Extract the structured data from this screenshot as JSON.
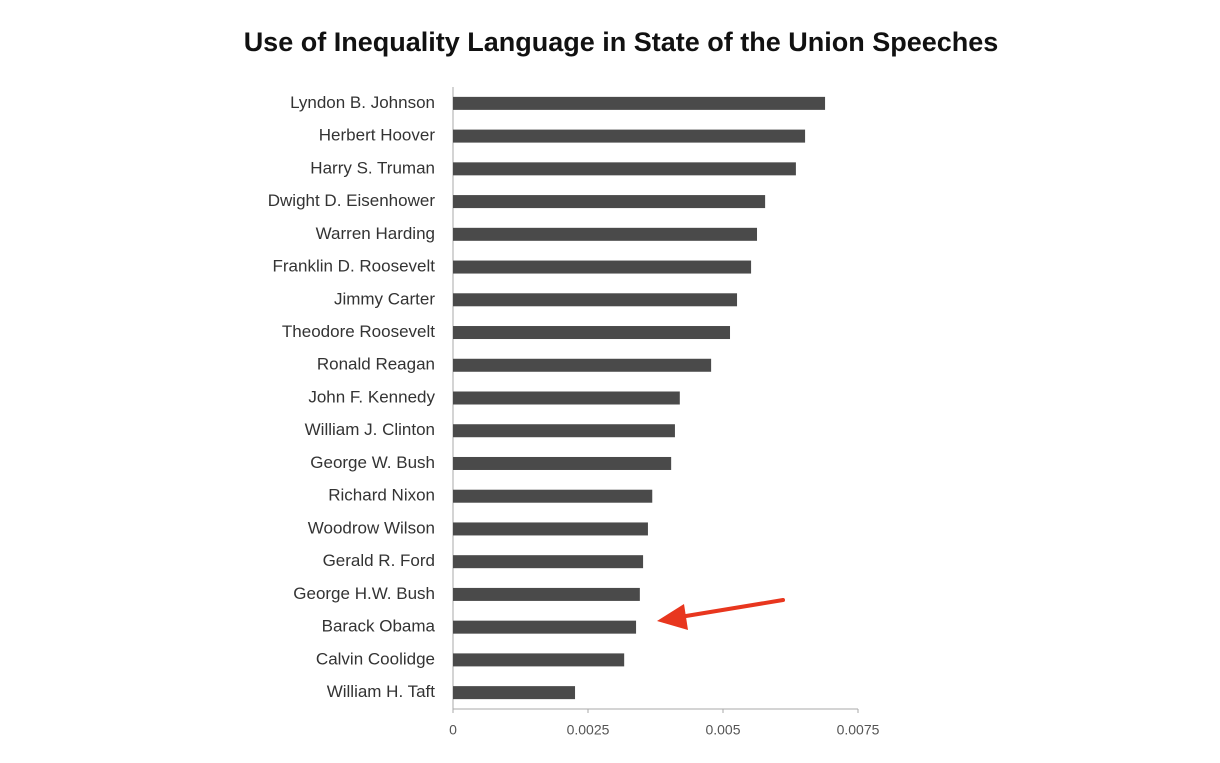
{
  "chart_data": {
    "type": "bar",
    "orientation": "horizontal",
    "title": "Use of Inequality Language in State of the Union Speeches",
    "categories": [
      "Lyndon B. Johnson",
      "Herbert Hoover",
      "Harry S. Truman",
      "Dwight D. Eisenhower",
      "Warren Harding",
      "Franklin D. Roosevelt",
      "Jimmy Carter",
      "Theodore Roosevelt",
      "Ronald Reagan",
      "John F. Kennedy",
      "William J. Clinton",
      "George W. Bush",
      "Richard Nixon",
      "Woodrow Wilson",
      "Gerald R. Ford",
      "George H.W. Bush",
      "Barack Obama",
      "Calvin Coolidge",
      "William H. Taft"
    ],
    "values": [
      0.00689,
      0.00652,
      0.00635,
      0.00578,
      0.00563,
      0.00552,
      0.00526,
      0.00513,
      0.00478,
      0.0042,
      0.00411,
      0.00404,
      0.00369,
      0.00361,
      0.00352,
      0.00346,
      0.00339,
      0.00317,
      0.00226
    ],
    "color": "#4a4a4a",
    "xlim": [
      0,
      0.0075
    ],
    "xticks": [
      0,
      0.0025,
      0.005,
      0.0075
    ],
    "grid": false
  }
}
